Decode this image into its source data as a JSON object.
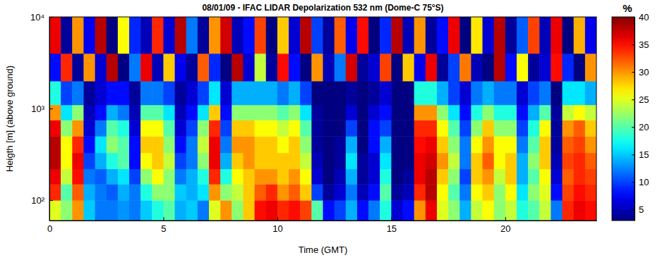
{
  "chart_data": {
    "type": "heatmap",
    "title": "08/01/09  -  IFAC LIDAR Depolarization 532 nm (Dome-C 75°S)",
    "x_label": "Time (GMT)",
    "y_label": "Heigth [m] (above ground)",
    "xlim": [
      0,
      24
    ],
    "xticks": [
      0,
      5,
      10,
      15,
      20
    ],
    "ylim": [
      60,
      10000
    ],
    "yticks": [
      {
        "value": 100,
        "label": "10²"
      },
      {
        "value": 1000,
        "label": "10³"
      },
      {
        "value": 10000,
        "label": "10⁴"
      }
    ],
    "log": "y",
    "x_edges": [
      0,
      0.5,
      1,
      1.5,
      2,
      2.5,
      3,
      3.5,
      4,
      4.5,
      5,
      5.5,
      6,
      6.5,
      7,
      7.5,
      8,
      8.5,
      9,
      9.5,
      10,
      10.5,
      11,
      11.5,
      12,
      12.5,
      13,
      13.5,
      14,
      14.5,
      15,
      15.5,
      16,
      16.5,
      17,
      17.5,
      18,
      18.5,
      19,
      19.5,
      20,
      20.5,
      21,
      21.5,
      22,
      22.5,
      23,
      23.5,
      24
    ],
    "y_edges": [
      60,
      100,
      150,
      220,
      330,
      500,
      750,
      1100,
      2000,
      4000,
      10000
    ],
    "z": [
      [
        25,
        22,
        30,
        15,
        12,
        12,
        13,
        12,
        15,
        18,
        20,
        14,
        15,
        12,
        25,
        30,
        22,
        28,
        35,
        36,
        34,
        35,
        33,
        20,
        8,
        10,
        14,
        8,
        12,
        18,
        6,
        8,
        30,
        36,
        25,
        22,
        14,
        24,
        26,
        22,
        24,
        18,
        20,
        24,
        12,
        34,
        36,
        35
      ],
      [
        34,
        20,
        32,
        14,
        12,
        11,
        14,
        12,
        18,
        22,
        22,
        15,
        14,
        16,
        30,
        22,
        24,
        28,
        32,
        34,
        30,
        32,
        28,
        10,
        4,
        6,
        12,
        5,
        8,
        20,
        4,
        5,
        34,
        38,
        26,
        20,
        12,
        26,
        28,
        22,
        26,
        16,
        22,
        25,
        8,
        33,
        35,
        34
      ],
      [
        36,
        24,
        35,
        12,
        11,
        14,
        16,
        10,
        22,
        26,
        22,
        12,
        14,
        18,
        34,
        18,
        26,
        28,
        30,
        30,
        28,
        30,
        26,
        6,
        3,
        5,
        14,
        4,
        6,
        18,
        3,
        4,
        36,
        38,
        28,
        22,
        10,
        28,
        30,
        24,
        28,
        14,
        20,
        26,
        6,
        32,
        34,
        33
      ],
      [
        38,
        26,
        36,
        10,
        14,
        18,
        20,
        8,
        26,
        28,
        24,
        10,
        12,
        22,
        36,
        14,
        28,
        30,
        28,
        28,
        28,
        28,
        24,
        5,
        3,
        4,
        16,
        4,
        6,
        16,
        3,
        3,
        36,
        37,
        30,
        24,
        12,
        28,
        32,
        26,
        28,
        14,
        22,
        28,
        5,
        33,
        34,
        32
      ],
      [
        38,
        26,
        34,
        8,
        16,
        22,
        20,
        8,
        28,
        28,
        22,
        8,
        12,
        24,
        36,
        12,
        30,
        30,
        28,
        28,
        26,
        28,
        22,
        4,
        3,
        4,
        14,
        3,
        8,
        14,
        3,
        3,
        35,
        36,
        28,
        22,
        12,
        26,
        30,
        26,
        26,
        12,
        20,
        28,
        4,
        32,
        33,
        30
      ],
      [
        36,
        22,
        30,
        6,
        12,
        20,
        18,
        6,
        26,
        26,
        20,
        6,
        10,
        22,
        34,
        10,
        28,
        28,
        26,
        26,
        24,
        26,
        20,
        4,
        3,
        3,
        10,
        3,
        8,
        10,
        3,
        3,
        34,
        34,
        26,
        20,
        10,
        22,
        28,
        22,
        22,
        10,
        18,
        26,
        4,
        30,
        32,
        28
      ],
      [
        30,
        16,
        22,
        5,
        8,
        14,
        12,
        5,
        20,
        20,
        16,
        5,
        8,
        16,
        28,
        8,
        22,
        22,
        22,
        22,
        20,
        22,
        16,
        4,
        3,
        3,
        6,
        3,
        6,
        8,
        3,
        3,
        30,
        30,
        22,
        16,
        8,
        18,
        22,
        18,
        18,
        8,
        14,
        20,
        4,
        24,
        26,
        24
      ],
      [
        18,
        10,
        12,
        4,
        6,
        8,
        8,
        4,
        12,
        12,
        10,
        4,
        6,
        10,
        16,
        6,
        14,
        14,
        14,
        14,
        12,
        14,
        10,
        3,
        3,
        3,
        4,
        3,
        4,
        6,
        3,
        3,
        18,
        18,
        14,
        10,
        6,
        12,
        14,
        12,
        12,
        6,
        10,
        12,
        3,
        16,
        16,
        14
      ],
      [
        8,
        34,
        4,
        30,
        6,
        38,
        3,
        12,
        36,
        5,
        28,
        7,
        4,
        32,
        9,
        3,
        38,
        6,
        24,
        4,
        35,
        8,
        3,
        30,
        5,
        12,
        37,
        4,
        6,
        33,
        3,
        28,
        7,
        36,
        4,
        10,
        31,
        5,
        3,
        38,
        8,
        26,
        4,
        6,
        35,
        9,
        3,
        30
      ],
      [
        36,
        4,
        30,
        7,
        38,
        3,
        26,
        9,
        5,
        34,
        6,
        38,
        12,
        4,
        30,
        37,
        5,
        8,
        33,
        3,
        28,
        6,
        38,
        10,
        4,
        32,
        7,
        35,
        3,
        9,
        38,
        5,
        30,
        4,
        8,
        36,
        3,
        27,
        6,
        38,
        4,
        11,
        33,
        5,
        36,
        3,
        29,
        7
      ]
    ],
    "colorbar": {
      "range": [
        3,
        40
      ],
      "ticks": [
        5,
        10,
        15,
        20,
        25,
        30,
        35,
        40
      ],
      "label": "%"
    }
  }
}
